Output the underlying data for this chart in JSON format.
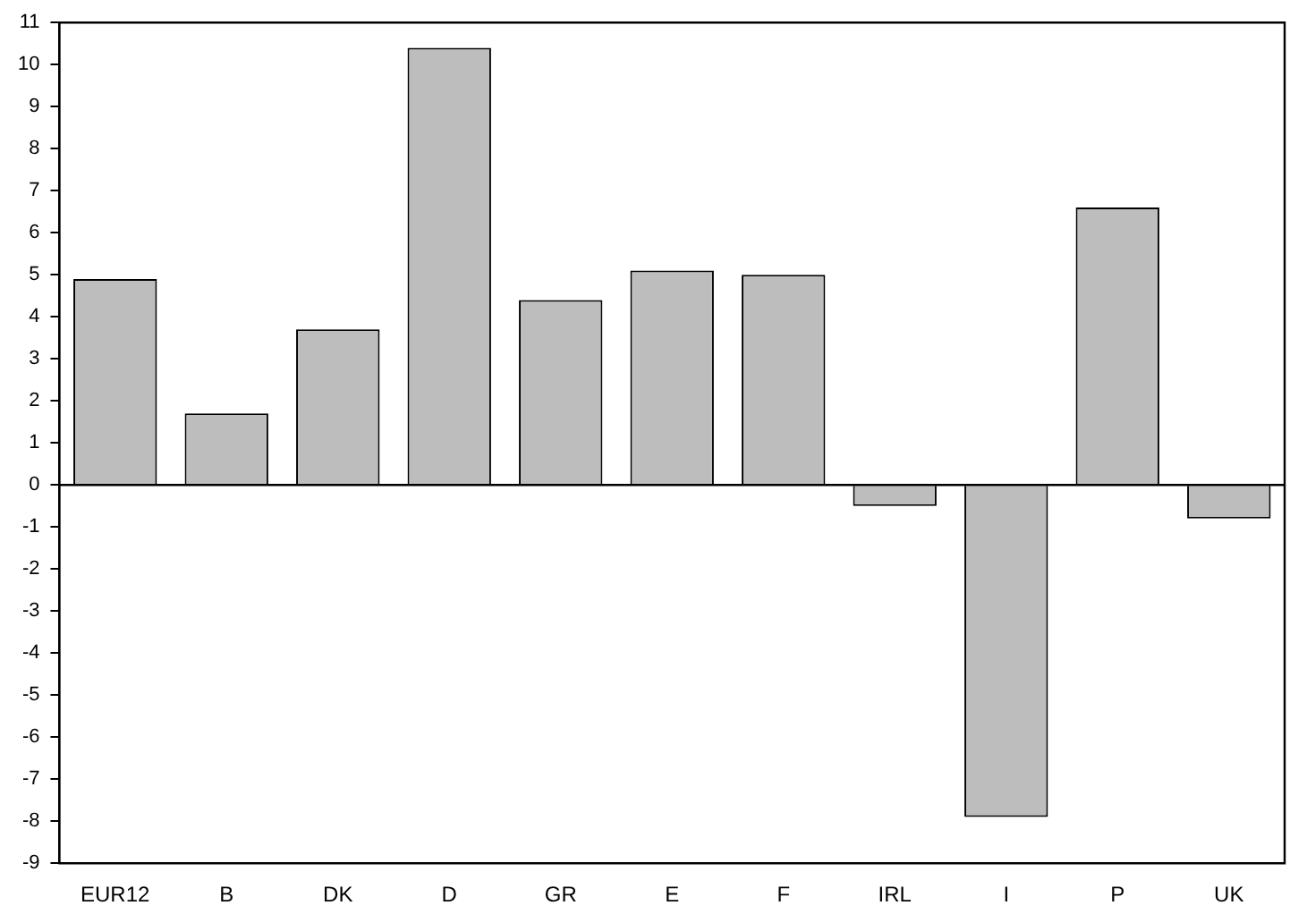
{
  "chart_data": {
    "type": "bar",
    "categories": [
      "EUR12",
      "B",
      "DK",
      "D",
      "GR",
      "E",
      "F",
      "IRL",
      "I",
      "P",
      "UK"
    ],
    "values": [
      4.9,
      1.7,
      3.7,
      10.4,
      4.4,
      5.1,
      5.0,
      -0.5,
      -7.9,
      6.6,
      -0.8
    ],
    "color": "#bdbdbd",
    "ylim": [
      -9,
      11
    ],
    "yticks": [
      -9,
      -8,
      -7,
      -6,
      -5,
      -4,
      -3,
      -2,
      -1,
      0,
      1,
      2,
      3,
      4,
      5,
      6,
      7,
      8,
      9,
      10,
      11
    ],
    "grid": false,
    "legend": false,
    "ref_lines": [
      {
        "axis": "y",
        "value": 0
      }
    ]
  }
}
